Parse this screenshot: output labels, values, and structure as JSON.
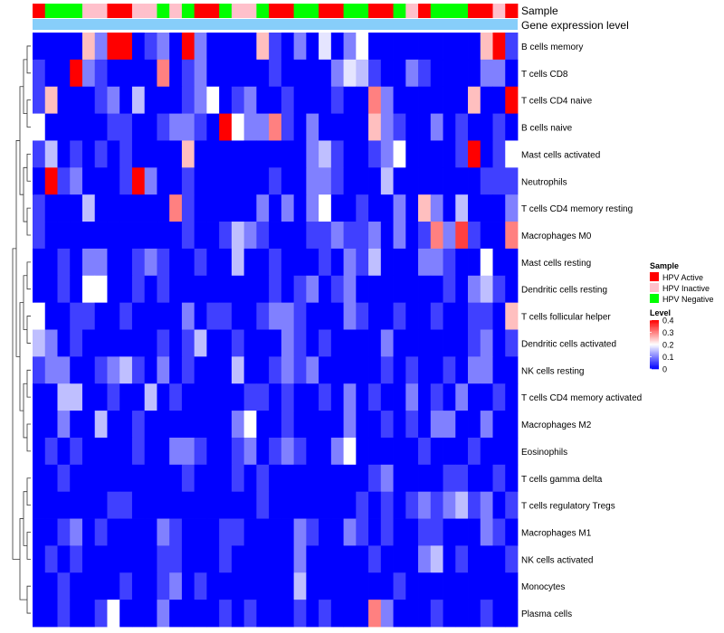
{
  "chart_data": {
    "type": "heatmap",
    "annotation_tracks": [
      "Sample",
      "Gene expression level"
    ],
    "rows": [
      "B cells memory",
      "T cells CD8",
      "T cells CD4 naive",
      "B cells naive",
      "Mast cells activated",
      "Neutrophils",
      "T cells CD4 memory resting",
      "Macrophages M0",
      "Mast cells resting",
      "Dendritic cells resting",
      "T cells follicular helper",
      "Dendritic cells activated",
      "NK cells resting",
      "T cells CD4 memory activated",
      "Macrophages M2",
      "Eosinophils",
      "T cells gamma delta",
      "T cells regulatory  Tregs",
      "Macrophages M1",
      "NK cells activated",
      "Monocytes",
      "Plasma cells"
    ],
    "sample_groups": [
      "A",
      "N",
      "N",
      "N",
      "I",
      "I",
      "A",
      "A",
      "I",
      "I",
      "N",
      "I",
      "N",
      "A",
      "A",
      "N",
      "I",
      "I",
      "N",
      "A",
      "A",
      "N",
      "N",
      "A",
      "A",
      "N",
      "N",
      "A",
      "A",
      "N",
      "I",
      "A",
      "N",
      "N",
      "N",
      "A",
      "A",
      "I",
      "A"
    ],
    "values": [
      [
        0.0,
        0.0,
        0.0,
        0.0,
        0.25,
        0.1,
        0.4,
        0.4,
        0.0,
        0.05,
        0.1,
        0.0,
        0.4,
        0.1,
        0.0,
        0.0,
        0.0,
        0.0,
        0.25,
        0.05,
        0.0,
        0.1,
        0.0,
        0.18,
        0.0,
        0.1,
        0.2,
        0.0,
        0.0,
        0.0,
        0.0,
        0.0,
        0.0,
        0.0,
        0.0,
        0.0,
        0.25,
        0.4,
        0.05
      ],
      [
        0.05,
        0.0,
        0.0,
        0.4,
        0.1,
        0.05,
        0.0,
        0.0,
        0.0,
        0.0,
        0.3,
        0.0,
        0.05,
        0.1,
        0.0,
        0.0,
        0.0,
        0.0,
        0.0,
        0.05,
        0.0,
        0.0,
        0.0,
        0.0,
        0.1,
        0.18,
        0.15,
        0.05,
        0.0,
        0.0,
        0.1,
        0.05,
        0.0,
        0.0,
        0.0,
        0.0,
        0.1,
        0.1,
        0.0
      ],
      [
        0.05,
        0.25,
        0.0,
        0.0,
        0.0,
        0.05,
        0.1,
        0.0,
        0.15,
        0.0,
        0.0,
        0.0,
        0.05,
        0.1,
        0.2,
        0.0,
        0.05,
        0.1,
        0.0,
        0.0,
        0.05,
        0.0,
        0.0,
        0.0,
        0.05,
        0.0,
        0.0,
        0.3,
        0.1,
        0.0,
        0.0,
        0.0,
        0.0,
        0.0,
        0.0,
        0.25,
        0.0,
        0.0,
        0.4
      ],
      [
        0.2,
        0.0,
        0.0,
        0.0,
        0.0,
        0.0,
        0.05,
        0.05,
        0.0,
        0.0,
        0.05,
        0.1,
        0.1,
        0.05,
        0.0,
        0.4,
        0.2,
        0.1,
        0.1,
        0.3,
        0.05,
        0.0,
        0.1,
        0.0,
        0.0,
        0.0,
        0.0,
        0.25,
        0.1,
        0.05,
        0.0,
        0.0,
        0.1,
        0.0,
        0.05,
        0.0,
        0.0,
        0.05,
        0.0
      ],
      [
        0.05,
        0.15,
        0.0,
        0.05,
        0.0,
        0.05,
        0.0,
        0.05,
        0.0,
        0.0,
        0.0,
        0.0,
        0.25,
        0.0,
        0.0,
        0.0,
        0.0,
        0.0,
        0.0,
        0.0,
        0.0,
        0.0,
        0.1,
        0.15,
        0.05,
        0.0,
        0.0,
        0.05,
        0.1,
        0.2,
        0.0,
        0.0,
        0.0,
        0.0,
        0.05,
        0.4,
        0.0,
        0.05,
        0.2
      ],
      [
        0.0,
        0.4,
        0.05,
        0.1,
        0.0,
        0.0,
        0.0,
        0.05,
        0.4,
        0.1,
        0.0,
        0.0,
        0.05,
        0.0,
        0.0,
        0.0,
        0.0,
        0.0,
        0.0,
        0.05,
        0.0,
        0.0,
        0.1,
        0.1,
        0.05,
        0.0,
        0.0,
        0.0,
        0.15,
        0.0,
        0.0,
        0.0,
        0.0,
        0.0,
        0.0,
        0.0,
        0.05,
        0.05,
        0.05
      ],
      [
        0.05,
        0.0,
        0.0,
        0.0,
        0.15,
        0.0,
        0.0,
        0.0,
        0.0,
        0.0,
        0.0,
        0.3,
        0.05,
        0.0,
        0.0,
        0.0,
        0.0,
        0.0,
        0.1,
        0.0,
        0.1,
        0.0,
        0.1,
        0.2,
        0.0,
        0.0,
        0.05,
        0.0,
        0.0,
        0.1,
        0.0,
        0.25,
        0.1,
        0.0,
        0.15,
        0.0,
        0.0,
        0.0,
        0.1
      ],
      [
        0.05,
        0.0,
        0.0,
        0.0,
        0.0,
        0.0,
        0.0,
        0.0,
        0.0,
        0.0,
        0.0,
        0.0,
        0.05,
        0.0,
        0.0,
        0.05,
        0.15,
        0.1,
        0.05,
        0.0,
        0.0,
        0.0,
        0.05,
        0.05,
        0.1,
        0.05,
        0.05,
        0.1,
        0.0,
        0.1,
        0.0,
        0.05,
        0.3,
        0.1,
        0.35,
        0.05,
        0.0,
        0.0,
        0.3
      ],
      [
        0.0,
        0.0,
        0.05,
        0.0,
        0.1,
        0.1,
        0.0,
        0.0,
        0.05,
        0.1,
        0.05,
        0.0,
        0.0,
        0.05,
        0.0,
        0.0,
        0.15,
        0.0,
        0.0,
        0.05,
        0.0,
        0.0,
        0.0,
        0.05,
        0.0,
        0.1,
        0.05,
        0.15,
        0.0,
        0.0,
        0.0,
        0.1,
        0.1,
        0.05,
        0.0,
        0.0,
        0.2,
        0.0,
        0.0
      ],
      [
        0.0,
        0.0,
        0.05,
        0.0,
        0.2,
        0.2,
        0.0,
        0.0,
        0.05,
        0.0,
        0.05,
        0.0,
        0.0,
        0.0,
        0.0,
        0.0,
        0.0,
        0.0,
        0.0,
        0.05,
        0.0,
        0.05,
        0.1,
        0.0,
        0.05,
        0.1,
        0.0,
        0.0,
        0.0,
        0.0,
        0.0,
        0.0,
        0.0,
        0.05,
        0.0,
        0.1,
        0.15,
        0.05,
        0.0
      ],
      [
        0.2,
        0.0,
        0.0,
        0.05,
        0.05,
        0.0,
        0.0,
        0.05,
        0.0,
        0.0,
        0.0,
        0.0,
        0.1,
        0.0,
        0.05,
        0.05,
        0.0,
        0.0,
        0.05,
        0.1,
        0.1,
        0.05,
        0.0,
        0.0,
        0.0,
        0.1,
        0.05,
        0.0,
        0.0,
        0.05,
        0.0,
        0.0,
        0.05,
        0.0,
        0.0,
        0.05,
        0.05,
        0.0,
        0.25
      ],
      [
        0.15,
        0.1,
        0.0,
        0.05,
        0.0,
        0.0,
        0.0,
        0.0,
        0.0,
        0.0,
        0.05,
        0.0,
        0.05,
        0.15,
        0.0,
        0.0,
        0.05,
        0.0,
        0.0,
        0.0,
        0.1,
        0.05,
        0.0,
        0.05,
        0.0,
        0.0,
        0.0,
        0.0,
        0.1,
        0.0,
        0.0,
        0.0,
        0.0,
        0.0,
        0.0,
        0.05,
        0.1,
        0.0,
        0.05
      ],
      [
        0.05,
        0.1,
        0.1,
        0.0,
        0.0,
        0.05,
        0.1,
        0.15,
        0.05,
        0.0,
        0.1,
        0.0,
        0.05,
        0.0,
        0.0,
        0.0,
        0.15,
        0.0,
        0.0,
        0.05,
        0.1,
        0.05,
        0.1,
        0.0,
        0.0,
        0.0,
        0.0,
        0.0,
        0.05,
        0.0,
        0.05,
        0.0,
        0.0,
        0.05,
        0.0,
        0.1,
        0.1,
        0.0,
        0.0
      ],
      [
        0.0,
        0.0,
        0.15,
        0.15,
        0.0,
        0.0,
        0.05,
        0.0,
        0.0,
        0.15,
        0.0,
        0.05,
        0.0,
        0.0,
        0.0,
        0.0,
        0.0,
        0.05,
        0.05,
        0.0,
        0.05,
        0.0,
        0.0,
        0.05,
        0.0,
        0.1,
        0.0,
        0.05,
        0.0,
        0.0,
        0.1,
        0.0,
        0.05,
        0.0,
        0.1,
        0.0,
        0.0,
        0.05,
        0.0
      ],
      [
        0.0,
        0.0,
        0.1,
        0.0,
        0.0,
        0.15,
        0.0,
        0.0,
        0.05,
        0.0,
        0.0,
        0.0,
        0.0,
        0.0,
        0.0,
        0.0,
        0.1,
        0.2,
        0.0,
        0.0,
        0.05,
        0.0,
        0.0,
        0.0,
        0.0,
        0.1,
        0.0,
        0.0,
        0.05,
        0.0,
        0.05,
        0.0,
        0.1,
        0.1,
        0.0,
        0.0,
        0.1,
        0.0,
        0.0
      ],
      [
        0.0,
        0.05,
        0.0,
        0.05,
        0.0,
        0.0,
        0.0,
        0.0,
        0.05,
        0.0,
        0.0,
        0.1,
        0.1,
        0.05,
        0.0,
        0.0,
        0.05,
        0.1,
        0.0,
        0.05,
        0.1,
        0.05,
        0.0,
        0.0,
        0.1,
        0.2,
        0.0,
        0.0,
        0.0,
        0.0,
        0.0,
        0.05,
        0.0,
        0.0,
        0.0,
        0.05,
        0.0,
        0.0,
        0.0
      ],
      [
        0.0,
        0.0,
        0.05,
        0.0,
        0.0,
        0.0,
        0.0,
        0.0,
        0.0,
        0.0,
        0.0,
        0.0,
        0.05,
        0.0,
        0.0,
        0.0,
        0.05,
        0.0,
        0.05,
        0.0,
        0.0,
        0.0,
        0.0,
        0.0,
        0.0,
        0.0,
        0.0,
        0.05,
        0.1,
        0.0,
        0.0,
        0.0,
        0.0,
        0.05,
        0.05,
        0.0,
        0.0,
        0.05,
        0.0
      ],
      [
        0.0,
        0.0,
        0.0,
        0.0,
        0.0,
        0.0,
        0.05,
        0.05,
        0.0,
        0.0,
        0.0,
        0.0,
        0.0,
        0.0,
        0.0,
        0.0,
        0.0,
        0.0,
        0.05,
        0.0,
        0.0,
        0.0,
        0.0,
        0.0,
        0.0,
        0.0,
        0.05,
        0.0,
        0.05,
        0.0,
        0.05,
        0.1,
        0.05,
        0.1,
        0.15,
        0.05,
        0.1,
        0.0,
        0.05
      ],
      [
        0.0,
        0.0,
        0.05,
        0.1,
        0.0,
        0.05,
        0.0,
        0.0,
        0.0,
        0.0,
        0.1,
        0.05,
        0.0,
        0.0,
        0.0,
        0.05,
        0.05,
        0.0,
        0.0,
        0.0,
        0.0,
        0.1,
        0.05,
        0.0,
        0.0,
        0.1,
        0.05,
        0.0,
        0.05,
        0.0,
        0.0,
        0.05,
        0.05,
        0.0,
        0.0,
        0.0,
        0.1,
        0.05,
        0.0
      ],
      [
        0.0,
        0.05,
        0.0,
        0.05,
        0.0,
        0.0,
        0.0,
        0.0,
        0.0,
        0.0,
        0.05,
        0.05,
        0.0,
        0.0,
        0.0,
        0.05,
        0.0,
        0.0,
        0.0,
        0.0,
        0.0,
        0.1,
        0.0,
        0.0,
        0.0,
        0.0,
        0.0,
        0.05,
        0.0,
        0.0,
        0.0,
        0.1,
        0.15,
        0.0,
        0.05,
        0.0,
        0.0,
        0.0,
        0.05
      ],
      [
        0.0,
        0.0,
        0.05,
        0.0,
        0.0,
        0.0,
        0.0,
        0.05,
        0.0,
        0.0,
        0.05,
        0.1,
        0.0,
        0.05,
        0.0,
        0.0,
        0.0,
        0.0,
        0.0,
        0.0,
        0.0,
        0.15,
        0.0,
        0.0,
        0.0,
        0.0,
        0.0,
        0.0,
        0.0,
        0.05,
        0.0,
        0.0,
        0.0,
        0.0,
        0.0,
        0.0,
        0.0,
        0.0,
        0.0
      ],
      [
        0.0,
        0.0,
        0.05,
        0.0,
        0.0,
        0.05,
        0.2,
        0.0,
        0.0,
        0.0,
        0.1,
        0.0,
        0.0,
        0.0,
        0.0,
        0.05,
        0.0,
        0.05,
        0.0,
        0.0,
        0.0,
        0.05,
        0.0,
        0.05,
        0.0,
        0.0,
        0.0,
        0.3,
        0.1,
        0.0,
        0.0,
        0.0,
        0.05,
        0.0,
        0.0,
        0.0,
        0.05,
        0.0,
        0.0
      ]
    ],
    "color_scale": {
      "min": 0,
      "max": 0.4,
      "colors": [
        "#0000ff",
        "#ffffff",
        "#ff0000"
      ]
    },
    "legend": {
      "sample": {
        "title": "Sample",
        "items": [
          {
            "key": "A",
            "label": "HPV Active",
            "color": "#ff0000"
          },
          {
            "key": "I",
            "label": "HPV Inactive",
            "color": "#ffc0cb"
          },
          {
            "key": "N",
            "label": "HPV Negative",
            "color": "#00ff00"
          }
        ]
      },
      "level": {
        "title": "Level",
        "ticks": [
          "0.4",
          "0.3",
          "0.2",
          "0.1",
          "0"
        ],
        "tick_values": [
          0.4,
          0.3,
          0.2,
          0.1,
          0
        ]
      }
    },
    "expression_track_color": "#87cefa"
  }
}
